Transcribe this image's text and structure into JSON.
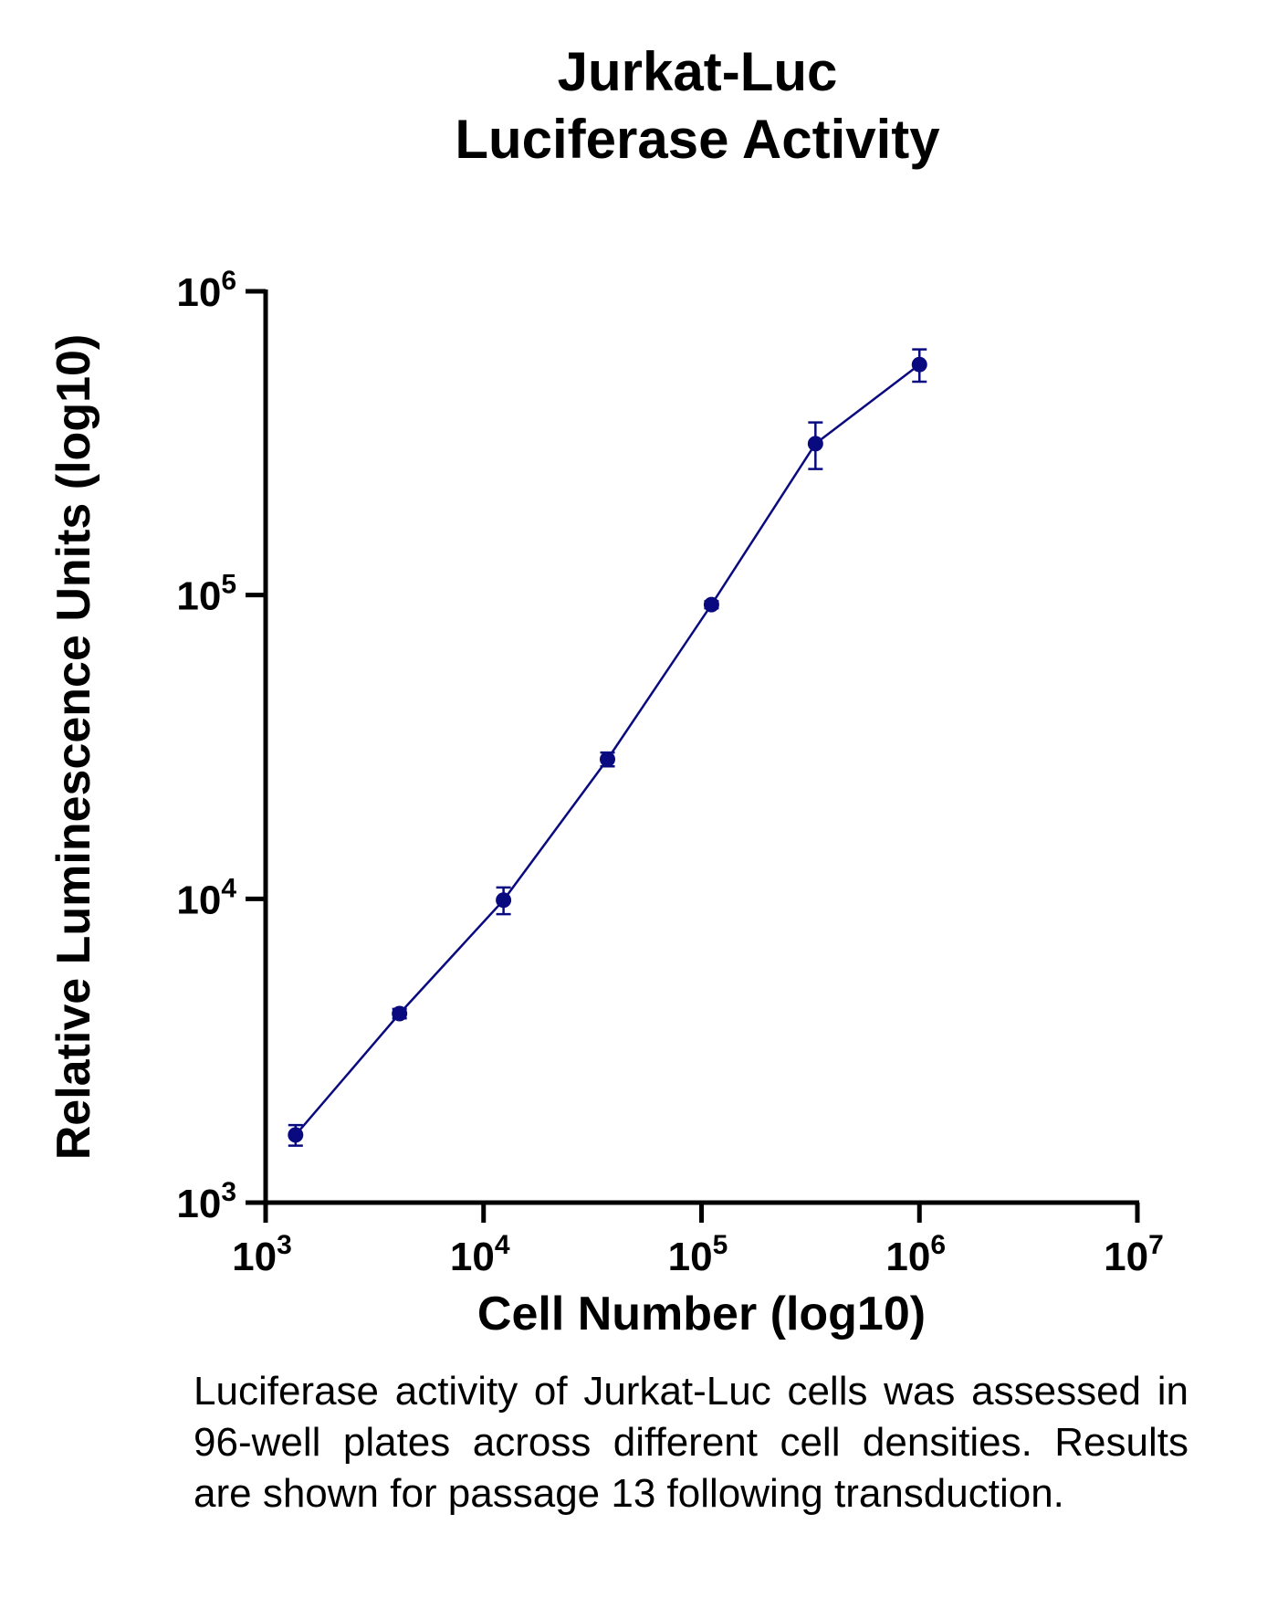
{
  "chart_data": {
    "type": "line",
    "title": [
      "Jurkat-Luc",
      "Luciferase Activity"
    ],
    "xlabel": "Cell Number (log10)",
    "ylabel": "Relative Luminescence Units (log10)",
    "xscale": "log",
    "yscale": "log",
    "xlim": [
      1000,
      10000000
    ],
    "ylim": [
      1000,
      1000000
    ],
    "xticks": [
      {
        "base": "10",
        "exp": "3",
        "value": 1000
      },
      {
        "base": "10",
        "exp": "4",
        "value": 10000
      },
      {
        "base": "10",
        "exp": "5",
        "value": 100000
      },
      {
        "base": "10",
        "exp": "6",
        "value": 1000000
      },
      {
        "base": "10",
        "exp": "7",
        "value": 10000000
      }
    ],
    "yticks": [
      {
        "base": "10",
        "exp": "3",
        "value": 1000
      },
      {
        "base": "10",
        "exp": "4",
        "value": 10000
      },
      {
        "base": "10",
        "exp": "5",
        "value": 100000
      },
      {
        "base": "10",
        "exp": "6",
        "value": 1000000
      }
    ],
    "grid": false,
    "series": [
      {
        "name": "Jurkat-Luc",
        "color": "#0a0a80",
        "x": [
          1372,
          4115,
          12346,
          37037,
          111111,
          333333,
          1000000
        ],
        "y": [
          1670,
          4190,
          9900,
          28800,
          93000,
          315000,
          574000
        ],
        "error": [
          130,
          150,
          1000,
          1500,
          2500,
          55000,
          70000
        ]
      }
    ]
  },
  "caption": "Luciferase activity of Jurkat-Luc cells was assessed in 96-well plates across different cell densities. Results are shown for passage 13 following transduction."
}
